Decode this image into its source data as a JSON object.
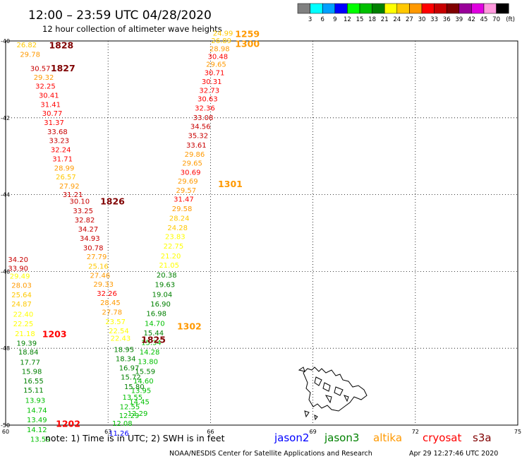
{
  "title": "12:00 – 23:59 UTC 04/28/2020",
  "subtitle": "12 hour collection of altimeter wave heights",
  "colorbar": {
    "unit": "(ft)",
    "ticks": [
      "3",
      "6",
      "9",
      "12",
      "15",
      "18",
      "21",
      "24",
      "27",
      "30",
      "33",
      "36",
      "39",
      "42",
      "45",
      "70"
    ],
    "colors": [
      "#808080",
      "#00ffff",
      "#00a0ff",
      "#0000ff",
      "#00ff00",
      "#00c000",
      "#008000",
      "#ffff00",
      "#ffc800",
      "#ff9900",
      "#ff0000",
      "#c80000",
      "#800000",
      "#990099",
      "#e000e0",
      "#ff99dd",
      "#000000"
    ]
  },
  "note": "note: 1) Time is in UTC; 2) SWH is in feet",
  "satellites": [
    {
      "name": "jason2",
      "color": "#0000ff"
    },
    {
      "name": "jason3",
      "color": "#008000"
    },
    {
      "name": "altika",
      "color": "#ff9900"
    },
    {
      "name": "cryosat",
      "color": "#ff0000"
    },
    {
      "name": "s3a",
      "color": "#800000"
    }
  ],
  "footer": "NOAA/NESDIS Center for Satellite Applications and Research",
  "timestamp": "Apr 29 12:27:46 UTC 2020",
  "chart_data": {
    "type": "scatter",
    "title": "12:00 – 23:59 UTC 04/28/2020",
    "subtitle": "12 hour collection of altimeter wave heights",
    "x_ticks": [
      "60",
      "63",
      "66",
      "69",
      "72",
      "75"
    ],
    "y_ticks": [
      "-40",
      "-42",
      "-44",
      "-46",
      "-48",
      "-50"
    ],
    "xlim": [
      60,
      75
    ],
    "ylim": [
      -50,
      -40
    ],
    "grid": true,
    "series": [
      {
        "name": "altika",
        "values": [
          24.99,
          26.89,
          28.98,
          30.48,
          29.65,
          30.71,
          30.31,
          32.73,
          30.63,
          32.36,
          33.08,
          34.56,
          35.32,
          33.61,
          29.86,
          29.65,
          30.69,
          29.69,
          29.57,
          31.47,
          29.58,
          28.24,
          24.28,
          23.83,
          22.75,
          21.2,
          21.05,
          20.38,
          19.63,
          19.04,
          16.9,
          16.98,
          14.7,
          15.44,
          15.34,
          14.28,
          13.8,
          15.59,
          14.6,
          13.95,
          14.45,
          12.29
        ]
      },
      {
        "name": "cryosat",
        "values": [
          26.82,
          29.78,
          30.57,
          29.32,
          32.25,
          30.41,
          31.41,
          30.77,
          31.37,
          33.68,
          33.23,
          32.24,
          31.71,
          28.99,
          26.57,
          27.92,
          31.21,
          30.1,
          33.25,
          32.82,
          34.27,
          34.93,
          30.78,
          27.79,
          25.16,
          27.46,
          29.33,
          32.26,
          28.45,
          27.78,
          23.57,
          22.54,
          22.43,
          18.95,
          18.34,
          16.97,
          15.72,
          15.8,
          13.55,
          12.55,
          12.29,
          12.08,
          11.26
        ]
      },
      {
        "name": "s3a",
        "values": [
          34.2,
          33.9,
          29.49,
          28.03,
          25.64,
          24.87,
          22.4,
          22.25,
          21.18,
          19.39,
          18.84,
          17.77,
          15.98,
          16.55,
          15.11,
          13.93,
          14.74,
          13.49,
          14.12,
          13.59
        ]
      }
    ],
    "labels": [
      {
        "text": "1259",
        "color": "#ff9900",
        "lon": 66.72,
        "lat": -39.82
      },
      {
        "text": "1300",
        "color": "#ff9900",
        "lon": 66.72,
        "lat": -40.07
      },
      {
        "text": "1828",
        "color": "#800000",
        "lon": 61.27,
        "lat": -40.11
      },
      {
        "text": "1827",
        "color": "#800000",
        "lon": 61.32,
        "lat": -40.71
      },
      {
        "text": "1301",
        "color": "#ff9900",
        "lon": 66.22,
        "lat": -43.72
      },
      {
        "text": "1826",
        "color": "#800000",
        "lon": 62.77,
        "lat": -44.17
      },
      {
        "text": "1203",
        "color": "#ff0000",
        "lon": 61.07,
        "lat": -47.63
      },
      {
        "text": "1302",
        "color": "#ff9900",
        "lon": 65.02,
        "lat": -47.43
      },
      {
        "text": "1825",
        "color": "#800000",
        "lon": 63.97,
        "lat": -47.78
      },
      {
        "text": "1202",
        "color": "#ff0000",
        "lon": 61.47,
        "lat": -49.96
      }
    ],
    "points": [
      [
        "24.99",
        "#ffc800",
        66.07,
        -39.8
      ],
      [
        "26.89",
        "#ffc800",
        66.02,
        -39.99
      ],
      [
        "28.98",
        "#ff9900",
        65.97,
        -40.2
      ],
      [
        "30.48",
        "#ff0000",
        65.92,
        -40.4
      ],
      [
        "29.65",
        "#ff9900",
        65.87,
        -40.61
      ],
      [
        "30.71",
        "#ff0000",
        65.82,
        -40.83
      ],
      [
        "30.31",
        "#ff0000",
        65.74,
        -41.06
      ],
      [
        "32.73",
        "#ff0000",
        65.67,
        -41.29
      ],
      [
        "30.63",
        "#ff0000",
        65.62,
        -41.51
      ],
      [
        "32.36",
        "#ff0000",
        65.54,
        -41.75
      ],
      [
        "33.08",
        "#c80000",
        65.49,
        -41.99
      ],
      [
        "34.56",
        "#c80000",
        65.41,
        -42.22
      ],
      [
        "35.32",
        "#c80000",
        65.34,
        -42.46
      ],
      [
        "33.61",
        "#c80000",
        65.29,
        -42.71
      ],
      [
        "29.86",
        "#ff9900",
        65.24,
        -42.95
      ],
      [
        "29.65",
        "#ff9900",
        65.17,
        -43.18
      ],
      [
        "30.69",
        "#ff0000",
        65.12,
        -43.42
      ],
      [
        "29.69",
        "#ff9900",
        65.04,
        -43.65
      ],
      [
        "29.57",
        "#ff9900",
        64.99,
        -43.89
      ],
      [
        "31.47",
        "#ff0000",
        64.92,
        -44.12
      ],
      [
        "29.58",
        "#ff9900",
        64.87,
        -44.37
      ],
      [
        "28.24",
        "#ffc800",
        64.79,
        -44.61
      ],
      [
        "24.28",
        "#ffc800",
        64.74,
        -44.86
      ],
      [
        "23.83",
        "#ffff00",
        64.67,
        -45.09
      ],
      [
        "22.75",
        "#ffff00",
        64.62,
        -45.34
      ],
      [
        "21.20",
        "#ffff00",
        64.54,
        -45.6
      ],
      [
        "21.05",
        "#ffff00",
        64.49,
        -45.84
      ],
      [
        "20.38",
        "#008000",
        64.42,
        -46.09
      ],
      [
        "19.63",
        "#008000",
        64.37,
        -46.34
      ],
      [
        "19.04",
        "#008000",
        64.29,
        -46.6
      ],
      [
        "16.90",
        "#008000",
        64.24,
        -46.85
      ],
      [
        "16.98",
        "#008000",
        64.12,
        -47.1
      ],
      [
        "14.70",
        "#00c000",
        64.07,
        -47.35
      ],
      [
        "15.44",
        "#008000",
        64.04,
        -47.6
      ],
      [
        "15.34",
        "#00c000",
        63.97,
        -47.85
      ],
      [
        "14.28",
        "#00c000",
        63.92,
        -48.1
      ],
      [
        "13.80",
        "#00c000",
        63.87,
        -48.35
      ],
      [
        "15.59",
        "#008000",
        63.79,
        -48.6
      ],
      [
        "14.60",
        "#00c000",
        63.74,
        -48.85
      ],
      [
        "13.95",
        "#00c000",
        63.67,
        -49.1
      ],
      [
        "14.45",
        "#00c000",
        63.62,
        -49.39
      ],
      [
        "12.29",
        "#00c000",
        63.57,
        -49.7
      ],
      [
        "26.82",
        "#ffc800",
        60.32,
        -40.1
      ],
      [
        "29.78",
        "#ff9900",
        60.42,
        -40.35
      ],
      [
        "30.57",
        "#c80000",
        60.72,
        -40.72
      ],
      [
        "29.32",
        "#ff9900",
        60.82,
        -40.95
      ],
      [
        "32.25",
        "#ff0000",
        60.87,
        -41.18
      ],
      [
        "30.41",
        "#ff0000",
        60.97,
        -41.42
      ],
      [
        "31.41",
        "#ff0000",
        61.02,
        -41.65
      ],
      [
        "30.77",
        "#ff0000",
        61.07,
        -41.88
      ],
      [
        "31.37",
        "#ff0000",
        61.12,
        -42.12
      ],
      [
        "33.68",
        "#c80000",
        61.22,
        -42.36
      ],
      [
        "33.23",
        "#c80000",
        61.27,
        -42.59
      ],
      [
        "32.24",
        "#ff0000",
        61.32,
        -42.83
      ],
      [
        "31.71",
        "#ff0000",
        61.37,
        -43.07
      ],
      [
        "28.99",
        "#ff9900",
        61.42,
        -43.31
      ],
      [
        "26.57",
        "#ffc800",
        61.47,
        -43.54
      ],
      [
        "27.92",
        "#ff9900",
        61.57,
        -43.78
      ],
      [
        "31.21",
        "#c80000",
        61.67,
        -44.0
      ],
      [
        "30.10",
        "#c80000",
        61.87,
        -44.17
      ],
      [
        "33.25",
        "#c80000",
        61.97,
        -44.42
      ],
      [
        "32.82",
        "#c80000",
        62.02,
        -44.66
      ],
      [
        "34.27",
        "#c80000",
        62.12,
        -44.9
      ],
      [
        "34.93",
        "#c80000",
        62.17,
        -45.14
      ],
      [
        "30.78",
        "#c80000",
        62.27,
        -45.39
      ],
      [
        "27.79",
        "#ff9900",
        62.37,
        -45.62
      ],
      [
        "25.16",
        "#ffc800",
        62.42,
        -45.86
      ],
      [
        "27.46",
        "#ff9900",
        62.47,
        -46.1
      ],
      [
        "29.33",
        "#ff9900",
        62.57,
        -46.33
      ],
      [
        "32.26",
        "#ff0000",
        62.67,
        -46.57
      ],
      [
        "28.45",
        "#ff9900",
        62.77,
        -46.81
      ],
      [
        "27.78",
        "#ff9900",
        62.82,
        -47.06
      ],
      [
        "23.57",
        "#ffff00",
        62.92,
        -47.31
      ],
      [
        "22.54",
        "#ffff00",
        63.02,
        -47.55
      ],
      [
        "22.43",
        "#ffff00",
        63.07,
        -47.74
      ],
      [
        "18.95",
        "#008000",
        63.17,
        -48.03
      ],
      [
        "18.34",
        "#008000",
        63.22,
        -48.27
      ],
      [
        "16.97",
        "#008000",
        63.32,
        -48.51
      ],
      [
        "15.72",
        "#008000",
        63.37,
        -48.75
      ],
      [
        "15.80",
        "#008000",
        63.47,
        -49.0
      ],
      [
        "13.55",
        "#00c000",
        63.42,
        -49.27
      ],
      [
        "12.55",
        "#00c000",
        63.34,
        -49.52
      ],
      [
        "12.29",
        "#00c000",
        63.32,
        -49.75
      ],
      [
        "12.08",
        "#00c000",
        63.12,
        -49.95
      ],
      [
        "11.26",
        "#0000ff",
        63.02,
        -50.21
      ],
      [
        "34.20",
        "#c80000",
        60.07,
        -45.69
      ],
      [
        "33.90",
        "#c80000",
        60.07,
        -45.92
      ],
      [
        "29.49",
        "#ffff00",
        60.12,
        -46.12
      ],
      [
        "28.03",
        "#ff9900",
        60.17,
        -46.36
      ],
      [
        "25.64",
        "#ffc800",
        60.17,
        -46.61
      ],
      [
        "24.87",
        "#ffc800",
        60.17,
        -46.85
      ],
      [
        "22.40",
        "#ffff00",
        60.22,
        -47.11
      ],
      [
        "22.25",
        "#ffff00",
        60.22,
        -47.36
      ],
      [
        "21.18",
        "#ffff00",
        60.27,
        -47.62
      ],
      [
        "19.39",
        "#008000",
        60.32,
        -47.87
      ],
      [
        "18.84",
        "#008000",
        60.37,
        -48.1
      ],
      [
        "17.77",
        "#008000",
        60.42,
        -48.36
      ],
      [
        "15.98",
        "#008000",
        60.47,
        -48.6
      ],
      [
        "16.55",
        "#008000",
        60.52,
        -48.85
      ],
      [
        "15.11",
        "#008000",
        60.52,
        -49.09
      ],
      [
        "13.93",
        "#00c000",
        60.57,
        -49.36
      ],
      [
        "14.74",
        "#00c000",
        60.62,
        -49.61
      ],
      [
        "13.49",
        "#00c000",
        60.62,
        -49.86
      ],
      [
        "14.12",
        "#00c000",
        60.62,
        -50.12
      ],
      [
        "13.59",
        "#00c000",
        60.72,
        -50.37
      ]
    ]
  }
}
